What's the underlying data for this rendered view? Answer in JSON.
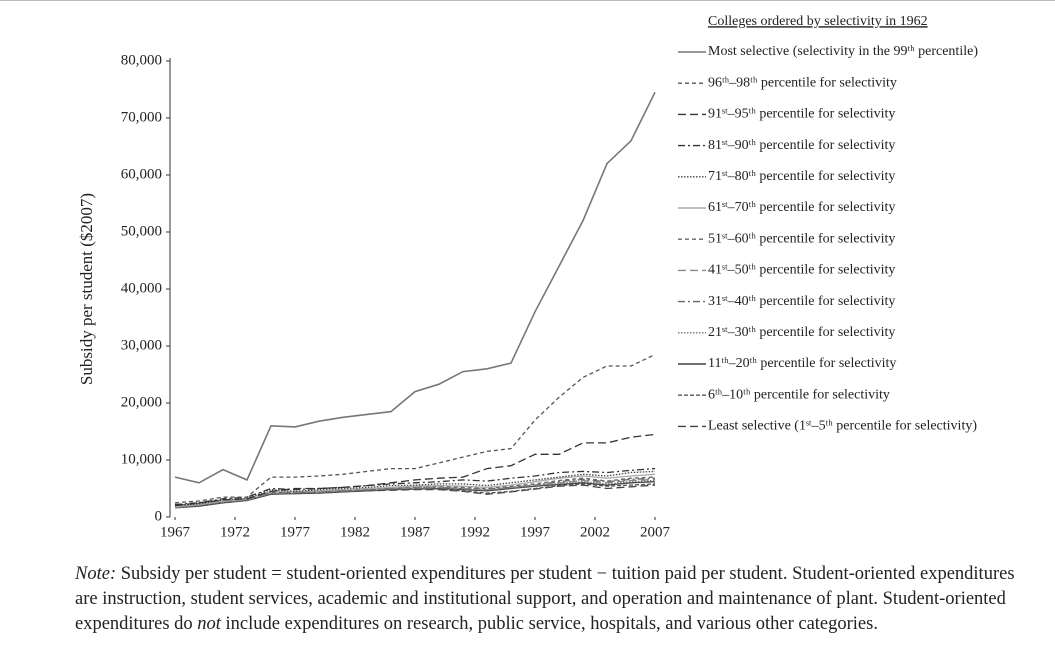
{
  "chart_data": {
    "type": "line",
    "y_label": "Subsidy per student ($2007)",
    "legend_title": "Colleges ordered by selectivity in 1962",
    "x": [
      1967,
      1969,
      1971,
      1973,
      1975,
      1977,
      1979,
      1981,
      1983,
      1985,
      1987,
      1989,
      1991,
      1993,
      1995,
      1997,
      1999,
      2001,
      2003,
      2005,
      2007
    ],
    "xlim": [
      1967,
      2007
    ],
    "xticks": [
      1967,
      1972,
      1977,
      1982,
      1987,
      1992,
      1997,
      2002,
      2007
    ],
    "ylim": [
      0,
      80000
    ],
    "yticks": [
      0,
      {
        "value": 10000,
        "label": "10,000"
      },
      {
        "value": 20000,
        "label": "20,000"
      },
      {
        "value": 30000,
        "label": "30,000"
      },
      {
        "value": 40000,
        "label": "40,000"
      },
      {
        "value": 50000,
        "label": "50,000"
      },
      {
        "value": 60000,
        "label": "60,000"
      },
      {
        "value": 70000,
        "label": "70,000"
      },
      {
        "value": 80000,
        "label": "80,000"
      }
    ],
    "series": [
      {
        "name": "Most selective (selectivity in the 99ᵗʰ percentile)",
        "color": "#777",
        "dash": "none",
        "values": [
          7000,
          6000,
          8300,
          6500,
          16000,
          15800,
          16800,
          17500,
          18000,
          18500,
          22000,
          23300,
          25500,
          26000,
          27000,
          36000,
          44000,
          52000,
          62000,
          66000,
          74500
        ]
      },
      {
        "name": "96ᵗʰ–98ᵗʰ percentile for selectivity",
        "color": "#555",
        "dash": "4,3",
        "values": [
          2500,
          2800,
          3500,
          3500,
          7000,
          7000,
          7200,
          7500,
          8000,
          8500,
          8500,
          9500,
          10500,
          11500,
          12000,
          17000,
          21000,
          24500,
          26500,
          26500,
          28500
        ]
      },
      {
        "name": "91ˢᵗ–95ᵗʰ percentile for selectivity",
        "color": "#333",
        "dash": "8,4",
        "values": [
          2000,
          2500,
          3000,
          3200,
          4500,
          5000,
          5000,
          5200,
          5500,
          6000,
          6500,
          6800,
          7000,
          8500,
          9000,
          11000,
          11000,
          13000,
          13000,
          14000,
          14500
        ]
      },
      {
        "name": "81ˢᵗ–90ᵗʰ percentile for selectivity",
        "color": "#333",
        "dash": "7,3,2,3",
        "values": [
          2200,
          2500,
          3200,
          3500,
          5000,
          4800,
          5000,
          5200,
          5500,
          5800,
          6000,
          6200,
          6500,
          6300,
          6800,
          7200,
          7800,
          8000,
          7800,
          8200,
          8500
        ]
      },
      {
        "name": "71ˢᵗ–80ᵗʰ percentile for selectivity",
        "color": "#444",
        "dash": "1.5,1.5",
        "values": [
          2000,
          2300,
          3000,
          3300,
          4800,
          4500,
          4800,
          5000,
          5200,
          5500,
          5600,
          5800,
          5800,
          5500,
          6000,
          6500,
          7000,
          7500,
          7200,
          7800,
          8000
        ]
      },
      {
        "name": "61ˢᵗ–70ᵗʰ percentile for selectivity",
        "color": "#aaa",
        "dash": "none",
        "values": [
          1800,
          2200,
          2800,
          3200,
          4500,
          4500,
          4600,
          4800,
          5000,
          5200,
          5400,
          5500,
          5400,
          5200,
          5600,
          6200,
          6800,
          7200,
          6800,
          7200,
          7500
        ]
      },
      {
        "name": "51ˢᵗ–60ᵗʰ percentile for selectivity",
        "color": "#666",
        "dash": "4,3",
        "values": [
          2000,
          2400,
          2900,
          3200,
          4300,
          4400,
          4500,
          4700,
          4900,
          5100,
          5300,
          5400,
          5200,
          5000,
          5400,
          5800,
          6400,
          6800,
          6300,
          6800,
          7000
        ]
      },
      {
        "name": "41ˢᵗ–50ᵗʰ percentile for selectivity",
        "color": "#888",
        "dash": "8,4",
        "values": [
          1700,
          2100,
          2700,
          3000,
          4200,
          4300,
          4400,
          4600,
          4800,
          5000,
          5100,
          5200,
          5000,
          4800,
          5200,
          5600,
          6000,
          6400,
          6000,
          6400,
          6600
        ]
      },
      {
        "name": "31ˢᵗ–40ᵗʰ percentile for selectivity",
        "color": "#666",
        "dash": "7,3,2,3",
        "values": [
          1800,
          2200,
          2800,
          3100,
          4400,
          4300,
          4400,
          4600,
          4800,
          5000,
          5200,
          5200,
          5000,
          4900,
          5200,
          5600,
          6200,
          6600,
          6200,
          6600,
          6800
        ]
      },
      {
        "name": "21ˢᵗ–30ᵗʰ percentile for selectivity",
        "color": "#777",
        "dash": "1.5,1.5",
        "values": [
          1600,
          2000,
          2600,
          3000,
          4100,
          4200,
          4300,
          4500,
          4700,
          4900,
          5000,
          5100,
          4900,
          4700,
          5100,
          5500,
          5900,
          6200,
          5800,
          6200,
          6400
        ]
      },
      {
        "name": "11ᵗʰ–20ᵗʰ percentile for selectivity",
        "color": "#444",
        "dash": "none",
        "values": [
          1600,
          1900,
          2500,
          2900,
          4000,
          4100,
          4200,
          4400,
          4600,
          4800,
          4900,
          5000,
          4800,
          4600,
          5000,
          5400,
          5700,
          6000,
          5600,
          6000,
          6200
        ]
      },
      {
        "name": "6ᵗʰ–10ᵗʰ percentile for selectivity",
        "color": "#555",
        "dash": "4,2",
        "values": [
          1800,
          2100,
          2700,
          3000,
          4000,
          4200,
          4300,
          4500,
          4700,
          4900,
          5000,
          4900,
          4600,
          4200,
          4500,
          5000,
          5500,
          5800,
          5400,
          5600,
          5800
        ]
      },
      {
        "name": "Least selective (1ˢᵗ–5ᵗʰ percentile for selectivity)",
        "color": "#444",
        "dash": "8,4",
        "values": [
          1700,
          2000,
          2600,
          2900,
          4200,
          4100,
          4200,
          4400,
          4600,
          4700,
          4800,
          4800,
          4500,
          4000,
          4400,
          4900,
          5400,
          5600,
          5000,
          5300,
          5600
        ]
      }
    ]
  },
  "note": {
    "label": "Note:",
    "text_1": "Subsidy per student = student-oriented expenditures per student − tuition paid per student. Student-oriented expenditures are instruction, student services, academic and institutional support, and operation and maintenance of plant. Student-oriented expenditures do",
    "emphasis": "not",
    "text_2": "include expenditures on research, public service, hospitals, and various other categories."
  }
}
